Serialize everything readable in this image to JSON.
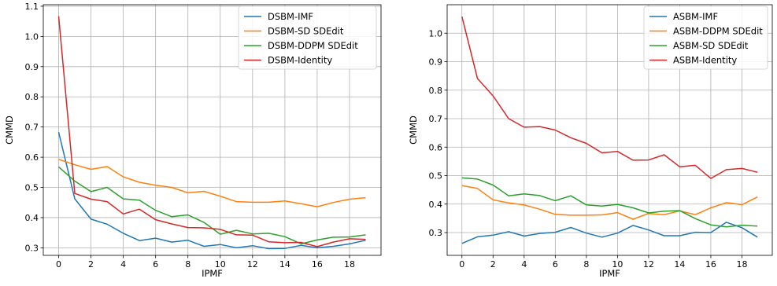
{
  "chart_data": [
    {
      "type": "line",
      "xlabel": "IPMF",
      "ylabel": "CMMD",
      "xlim": [
        -0.95,
        19.95
      ],
      "ylim": [
        0.275,
        1.105
      ],
      "xticks": [
        0,
        2,
        4,
        6,
        8,
        10,
        12,
        14,
        16,
        18
      ],
      "yticks": [
        0.3,
        0.4,
        0.5,
        0.6,
        0.7,
        0.8,
        0.9,
        1.0,
        1.1
      ],
      "ytick_labels": [
        "0.3",
        "0.4",
        "0.5",
        "0.6",
        "0.7",
        "0.8",
        "0.9",
        "1.0",
        "1.1"
      ],
      "grid": true,
      "legend_position": "top-right",
      "x": [
        0,
        1,
        2,
        3,
        4,
        5,
        6,
        7,
        8,
        9,
        10,
        11,
        12,
        13,
        14,
        15,
        16,
        17,
        18,
        19
      ],
      "series": [
        {
          "name": "DSBM-IMF",
          "color": "#1f77b4",
          "values": [
            0.683,
            0.462,
            0.395,
            0.378,
            0.348,
            0.324,
            0.332,
            0.319,
            0.325,
            0.305,
            0.311,
            0.3,
            0.307,
            0.297,
            0.298,
            0.308,
            0.3,
            0.305,
            0.313,
            0.325
          ]
        },
        {
          "name": "DSBM-SD SDEdit",
          "color": "#ff7f0e",
          "values": [
            0.593,
            0.575,
            0.56,
            0.569,
            0.535,
            0.517,
            0.507,
            0.5,
            0.482,
            0.487,
            0.471,
            0.453,
            0.451,
            0.451,
            0.455,
            0.446,
            0.436,
            0.45,
            0.461,
            0.466
          ]
        },
        {
          "name": "DSBM-DDPM SDEdit",
          "color": "#2ca02c",
          "values": [
            0.568,
            0.521,
            0.486,
            0.5,
            0.462,
            0.458,
            0.424,
            0.403,
            0.409,
            0.384,
            0.345,
            0.358,
            0.346,
            0.348,
            0.337,
            0.313,
            0.326,
            0.335,
            0.336,
            0.343
          ]
        },
        {
          "name": "DSBM-Identity",
          "color": "#d62728",
          "values": [
            1.067,
            0.48,
            0.461,
            0.453,
            0.412,
            0.428,
            0.393,
            0.379,
            0.367,
            0.366,
            0.361,
            0.343,
            0.342,
            0.32,
            0.317,
            0.318,
            0.304,
            0.319,
            0.33,
            0.328
          ]
        }
      ]
    },
    {
      "type": "line",
      "xlabel": "IPMF",
      "ylabel": "CMMD",
      "xlim": [
        -0.95,
        19.95
      ],
      "ylim": [
        0.22,
        1.1
      ],
      "xticks": [
        0,
        2,
        4,
        6,
        8,
        10,
        12,
        14,
        16,
        18
      ],
      "yticks": [
        0.3,
        0.4,
        0.5,
        0.6,
        0.7,
        0.8,
        0.9,
        1.0
      ],
      "ytick_labels": [
        "0.3",
        "0.4",
        "0.5",
        "0.6",
        "0.7",
        "0.8",
        "0.9",
        "1.0"
      ],
      "grid": true,
      "legend_position": "top-right",
      "x": [
        0,
        1,
        2,
        3,
        4,
        5,
        6,
        7,
        8,
        9,
        10,
        11,
        12,
        13,
        14,
        15,
        16,
        17,
        18,
        19
      ],
      "series": [
        {
          "name": "ASBM-IMF",
          "color": "#1f77b4",
          "values": [
            0.262,
            0.285,
            0.291,
            0.303,
            0.288,
            0.297,
            0.301,
            0.318,
            0.298,
            0.284,
            0.298,
            0.325,
            0.309,
            0.289,
            0.289,
            0.301,
            0.3,
            0.336,
            0.317,
            0.284
          ]
        },
        {
          "name": "ASBM-DDPM SDEdit",
          "color": "#ff7f0e",
          "values": [
            0.465,
            0.455,
            0.415,
            0.404,
            0.397,
            0.382,
            0.364,
            0.361,
            0.361,
            0.362,
            0.37,
            0.347,
            0.367,
            0.363,
            0.376,
            0.363,
            0.387,
            0.405,
            0.398,
            0.425
          ]
        },
        {
          "name": "ASBM-SD SDEdit",
          "color": "#2ca02c",
          "values": [
            0.492,
            0.488,
            0.467,
            0.429,
            0.436,
            0.43,
            0.412,
            0.429,
            0.397,
            0.393,
            0.399,
            0.387,
            0.369,
            0.375,
            0.377,
            0.349,
            0.327,
            0.32,
            0.326,
            0.323
          ]
        },
        {
          "name": "ASBM-Identity",
          "color": "#d62728",
          "values": [
            1.058,
            0.841,
            0.78,
            0.7,
            0.67,
            0.672,
            0.66,
            0.633,
            0.613,
            0.58,
            0.585,
            0.554,
            0.555,
            0.573,
            0.531,
            0.536,
            0.49,
            0.521,
            0.525,
            0.512
          ]
        }
      ]
    }
  ]
}
